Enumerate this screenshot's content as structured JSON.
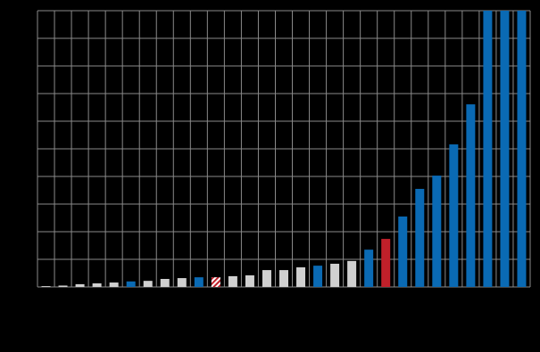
{
  "chart_data": {
    "type": "bar",
    "categories": [
      null,
      null,
      null,
      null,
      null,
      null,
      null,
      null,
      null,
      null,
      null,
      null,
      null,
      null,
      null,
      null,
      null,
      null,
      null,
      null,
      null,
      null,
      null,
      null,
      null,
      null,
      null,
      null,
      null
    ],
    "values": [
      0.03,
      0.05,
      0.1,
      0.13,
      0.16,
      0.2,
      0.22,
      0.29,
      0.32,
      0.35,
      0.35,
      0.39,
      0.42,
      0.61,
      0.61,
      0.71,
      0.77,
      0.84,
      0.94,
      1.35,
      1.74,
      2.55,
      3.55,
      4.03,
      5.16,
      6.61,
      10,
      10,
      10
    ],
    "colors": [
      "#d0d0d0",
      "#d0d0d0",
      "#d0d0d0",
      "#d0d0d0",
      "#d0d0d0",
      "#0a6ab4",
      "#d0d0d0",
      "#d0d0d0",
      "#d0d0d0",
      "#0a6ab4",
      "#c0202a",
      "#d0d0d0",
      "#d0d0d0",
      "#d0d0d0",
      "#d0d0d0",
      "#d0d0d0",
      "#0a6ab4",
      "#d0d0d0",
      "#d0d0d0",
      "#0a6ab4",
      "#c0202a",
      "#0a6ab4",
      "#0a6ab4",
      "#0a6ab4",
      "#0a6ab4",
      "#0a6ab4",
      "#0a6ab4",
      "#0a6ab4",
      "#0a6ab4"
    ],
    "hatched": [
      false,
      false,
      false,
      false,
      false,
      false,
      false,
      false,
      false,
      false,
      true,
      false,
      false,
      false,
      false,
      false,
      false,
      false,
      false,
      false,
      false,
      false,
      false,
      false,
      false,
      false,
      false,
      false,
      false
    ],
    "ylim": [
      0,
      10
    ],
    "yticks": [
      0,
      1,
      2,
      3,
      4,
      5,
      6,
      7,
      8,
      9,
      10
    ],
    "grid": true
  }
}
